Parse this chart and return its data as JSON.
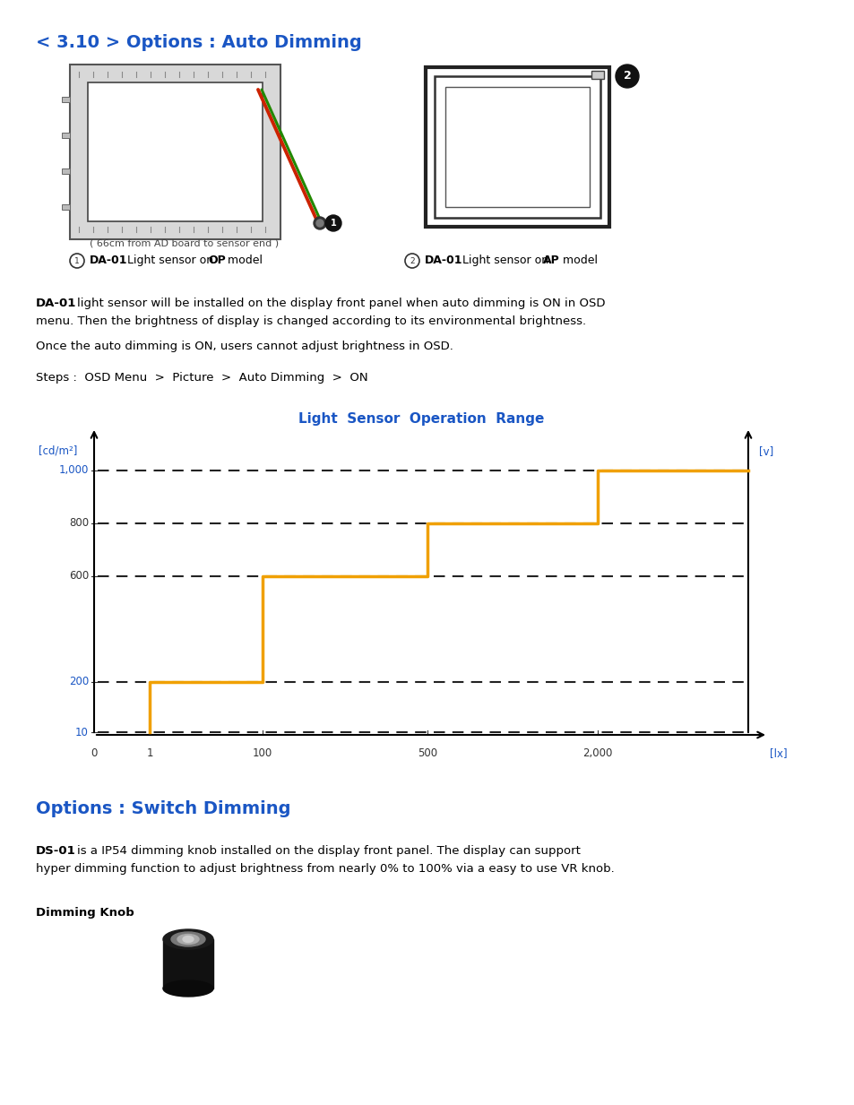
{
  "title": "< 3.10 > Options : Auto Dimming",
  "title_color": "#1a56c4",
  "title_fontsize": 14,
  "chart_title": "Light  Sensor  Operation  Range",
  "chart_title_color": "#1a56c4",
  "chart_title_fontsize": 11,
  "section2_title": "Options : Switch Dimming",
  "section2_color": "#1a56c4",
  "section2_fontsize": 14,
  "bg_color": "#ffffff",
  "text_color": "#000000",
  "blue_color": "#1a56c4",
  "orange_color": "#f0a000",
  "dashed_color": "#222222",
  "label1_sub": "( 66cm from AD board to sensor end )",
  "para2_text": "Once the auto dimming is ON, users cannot adjust brightness in OSD.",
  "para3_text": "Steps :  OSD Menu  >  Picture  >  Auto Dimming  >  ON",
  "dimming_knob_label": "Dimming Knob",
  "y_label": "[cd/m²]",
  "y_label_right": "[v]",
  "x_label": "[lx]",
  "yticks": [
    10,
    200,
    600,
    800,
    1000
  ],
  "ytick_labels": [
    "10",
    "200",
    "600",
    "800",
    "1,000"
  ],
  "xticks": [
    0,
    1,
    100,
    500,
    2000
  ],
  "xtick_labels": [
    "0",
    "1",
    "100",
    "500",
    "2,000"
  ],
  "dashed_lines_y": [
    10,
    200,
    600,
    800,
    1000
  ],
  "orange_line_x": [
    1,
    1,
    100,
    100,
    500,
    500,
    2000,
    2000,
    2500
  ],
  "orange_line_y": [
    10,
    200,
    200,
    600,
    600,
    800,
    800,
    1000,
    1000
  ],
  "blue_yticks": [
    10,
    200,
    1000
  ]
}
